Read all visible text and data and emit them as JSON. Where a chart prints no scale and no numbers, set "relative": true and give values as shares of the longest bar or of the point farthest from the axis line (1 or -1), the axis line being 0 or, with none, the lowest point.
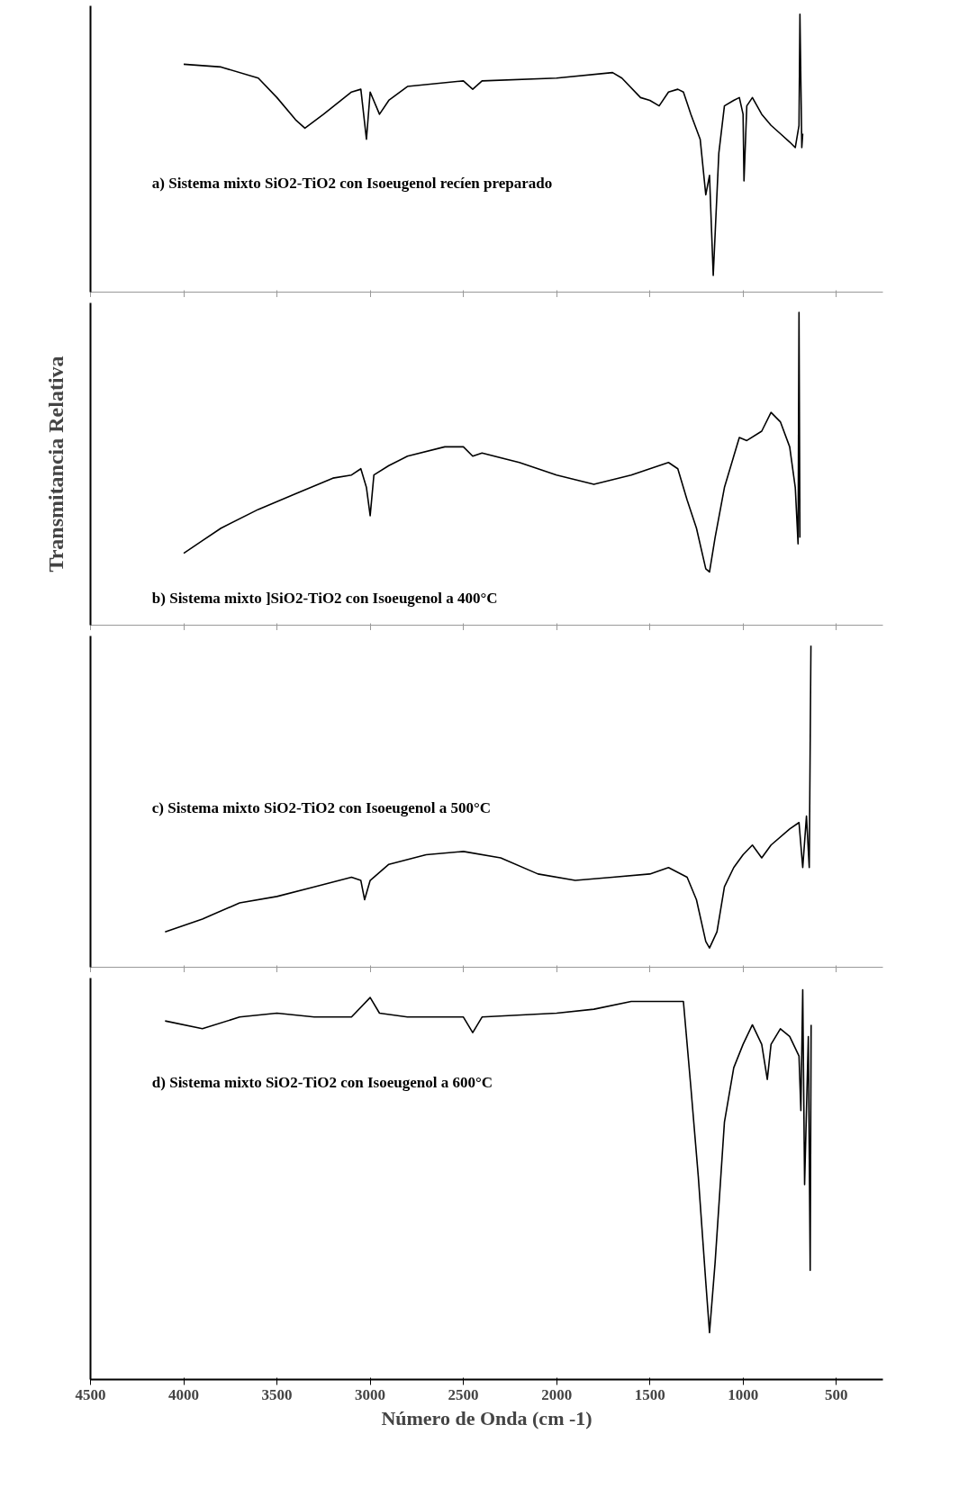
{
  "chart_data": [
    {
      "type": "line",
      "relative": true,
      "xlim": [
        4500,
        250
      ],
      "xticks": [
        4500,
        4000,
        3500,
        3000,
        2500,
        2000,
        1500,
        1000,
        500
      ],
      "tick_labels": false,
      "annotations": [
        "a) Sistema mixto SiO2-TiO2 con Isoeugenol recíen preparado"
      ],
      "series": [
        {
          "color": "#000000",
          "x": [
            4000,
            3800,
            3600,
            3500,
            3400,
            3350,
            3250,
            3100,
            3050,
            3020,
            3000,
            2950,
            2900,
            2800,
            2500,
            2450,
            2400,
            2000,
            1700,
            1650,
            1550,
            1500,
            1450,
            1400,
            1350,
            1320,
            1280,
            1230,
            1200,
            1180,
            1160,
            1130,
            1100,
            1050,
            1020,
            1000,
            995,
            980,
            950,
            900,
            850,
            800,
            750,
            720,
            700,
            695,
            685,
            680
          ],
          "values": [
            0.82,
            0.81,
            0.77,
            0.7,
            0.62,
            0.59,
            0.64,
            0.72,
            0.73,
            0.55,
            0.72,
            0.64,
            0.69,
            0.74,
            0.76,
            0.73,
            0.76,
            0.77,
            0.79,
            0.77,
            0.7,
            0.69,
            0.67,
            0.72,
            0.73,
            0.72,
            0.64,
            0.55,
            0.35,
            0.42,
            0.06,
            0.5,
            0.67,
            0.69,
            0.7,
            0.64,
            0.4,
            0.67,
            0.7,
            0.64,
            0.6,
            0.57,
            0.54,
            0.52,
            0.6,
            1,
            0.52,
            0.57
          ]
        }
      ]
    },
    {
      "type": "line",
      "relative": true,
      "xlim": [
        4500,
        250
      ],
      "xticks": [
        4500,
        4000,
        3500,
        3000,
        2500,
        2000,
        1500,
        1000,
        500
      ],
      "tick_labels": false,
      "ylabel": "Transmitancia Relativa",
      "annotations": [
        "b) Sistema mixto ]SiO2-TiO2 con Isoeugenol a 400°C"
      ],
      "series": [
        {
          "color": "#000000",
          "x": [
            4000,
            3900,
            3800,
            3600,
            3400,
            3200,
            3100,
            3050,
            3020,
            3000,
            2980,
            2900,
            2800,
            2600,
            2500,
            2450,
            2400,
            2200,
            2000,
            1800,
            1600,
            1450,
            1400,
            1350,
            1300,
            1250,
            1200,
            1180,
            1150,
            1100,
            1050,
            1020,
            980,
            900,
            850,
            800,
            750,
            720,
            705,
            700,
            695
          ],
          "values": [
            0.23,
            0.27,
            0.31,
            0.37,
            0.42,
            0.47,
            0.48,
            0.5,
            0.44,
            0.35,
            0.48,
            0.51,
            0.54,
            0.57,
            0.57,
            0.54,
            0.55,
            0.52,
            0.48,
            0.45,
            0.48,
            0.51,
            0.52,
            0.5,
            0.4,
            0.31,
            0.18,
            0.17,
            0.28,
            0.44,
            0.54,
            0.6,
            0.59,
            0.62,
            0.68,
            0.65,
            0.57,
            0.44,
            0.26,
            1,
            0.28
          ]
        }
      ]
    },
    {
      "type": "line",
      "relative": true,
      "xlim": [
        4500,
        250
      ],
      "xticks": [
        4500,
        4000,
        3500,
        3000,
        2500,
        2000,
        1500,
        1000,
        500
      ],
      "tick_labels": false,
      "annotations": [
        "c) Sistema mixto SiO2-TiO2 con Isoeugenol a 500°C"
      ],
      "series": [
        {
          "color": "#000000",
          "x": [
            4100,
            3900,
            3700,
            3500,
            3300,
            3100,
            3050,
            3030,
            3000,
            2900,
            2700,
            2500,
            2300,
            2100,
            1900,
            1700,
            1500,
            1400,
            1300,
            1250,
            1200,
            1180,
            1140,
            1100,
            1050,
            1000,
            950,
            900,
            850,
            750,
            700,
            680,
            660,
            645,
            636
          ],
          "values": [
            0.11,
            0.15,
            0.2,
            0.22,
            0.25,
            0.28,
            0.27,
            0.21,
            0.27,
            0.32,
            0.35,
            0.36,
            0.34,
            0.29,
            0.27,
            0.28,
            0.29,
            0.31,
            0.28,
            0.21,
            0.08,
            0.06,
            0.11,
            0.25,
            0.31,
            0.35,
            0.38,
            0.34,
            0.38,
            0.43,
            0.45,
            0.31,
            0.47,
            0.31,
            1
          ]
        }
      ]
    },
    {
      "type": "line",
      "relative": true,
      "xlim": [
        4500,
        250
      ],
      "xticks": [
        4500,
        4000,
        3500,
        3000,
        2500,
        2000,
        1500,
        1000,
        500
      ],
      "tick_labels": "x",
      "xlabel": "Número de Onda (cm -1)",
      "annotations": [
        "d) Sistema mixto SiO2-TiO2 con Isoeugenol a 600°C"
      ],
      "series": [
        {
          "color": "#000000",
          "x": [
            4100,
            3900,
            3700,
            3500,
            3300,
            3100,
            3000,
            2950,
            2800,
            2500,
            2450,
            2400,
            2000,
            1800,
            1600,
            1400,
            1320,
            1280,
            1240,
            1200,
            1180,
            1150,
            1100,
            1050,
            1000,
            950,
            900,
            870,
            850,
            800,
            750,
            700,
            690,
            680,
            670,
            650,
            640,
            635
          ],
          "values": [
            0.92,
            0.9,
            0.93,
            0.94,
            0.93,
            0.93,
            0.98,
            0.94,
            0.93,
            0.93,
            0.89,
            0.93,
            0.94,
            0.95,
            0.97,
            0.97,
            0.97,
            0.75,
            0.52,
            0.25,
            0.12,
            0.3,
            0.66,
            0.8,
            0.86,
            0.91,
            0.86,
            0.77,
            0.86,
            0.9,
            0.88,
            0.83,
            0.69,
            1,
            0.5,
            0.88,
            0.28,
            0.91
          ]
        }
      ]
    }
  ]
}
